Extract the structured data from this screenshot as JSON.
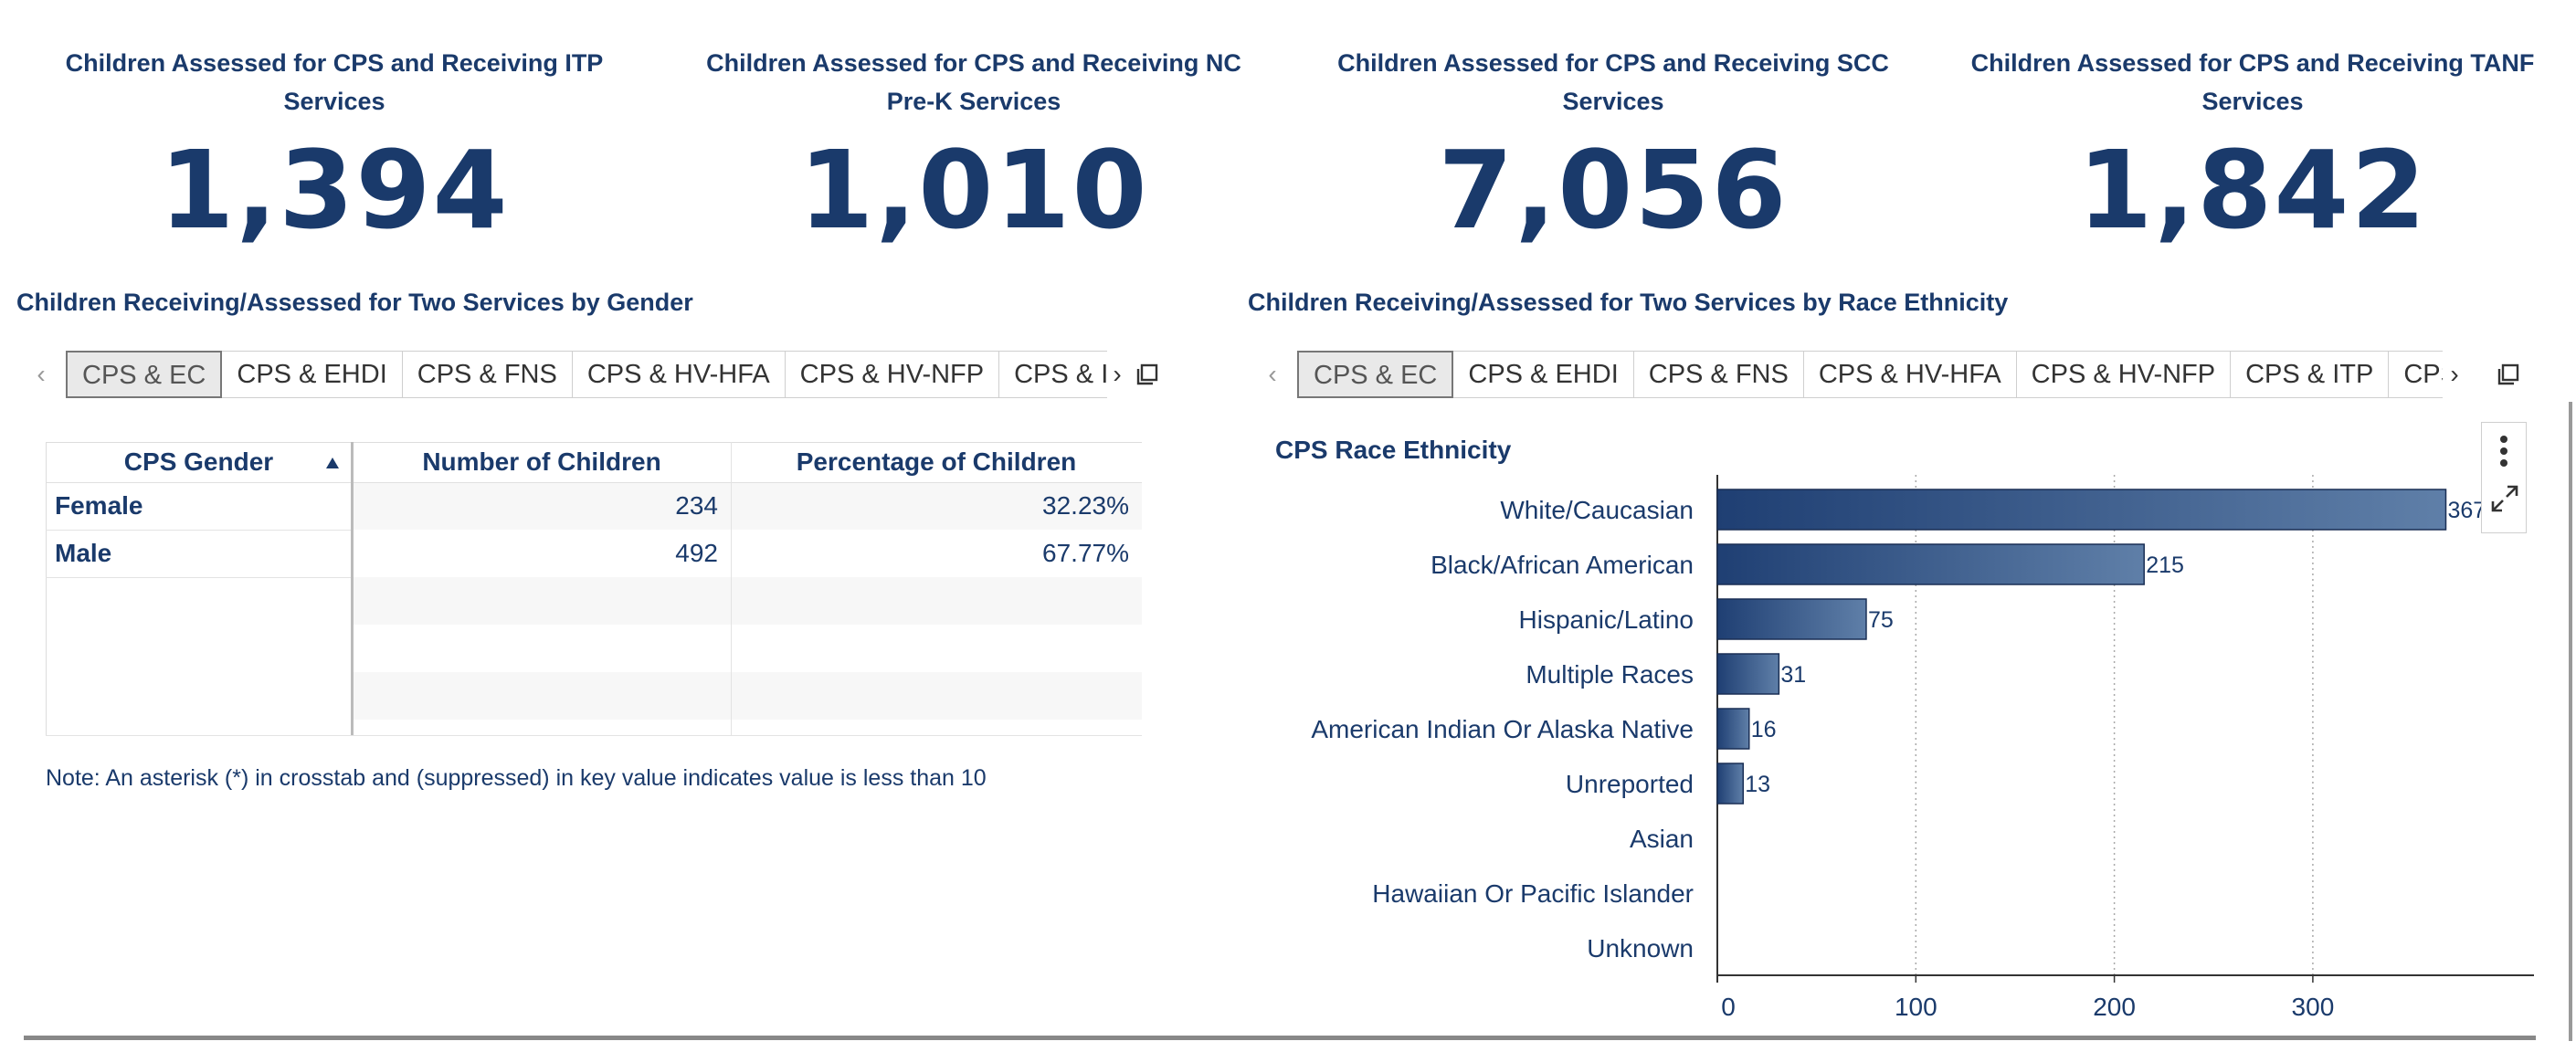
{
  "kpis": [
    {
      "title": "Children Assessed for CPS and Receiving ITP Services",
      "value": "1,394"
    },
    {
      "title": "Children Assessed for CPS and Receiving NC Pre-K Services",
      "value": "1,010"
    },
    {
      "title": "Children Assessed for CPS and Receiving SCC Services",
      "value": "7,056"
    },
    {
      "title": "Children Assessed for CPS and Receiving TANF Services",
      "value": "1,842"
    }
  ],
  "gender_section": {
    "title": "Children Receiving/Assessed for Two Services by Gender",
    "tabs": [
      "CPS & EC",
      "CPS & EHDI",
      "CPS & FNS",
      "CPS & HV-HFA",
      "CPS & HV-NFP",
      "CPS & ITP"
    ],
    "active_tab": "CPS & EC",
    "table": {
      "headers": [
        "CPS Gender",
        "Number of Children",
        "Percentage of Children"
      ],
      "rows": [
        {
          "label": "Female",
          "number": "234",
          "percent": "32.23%"
        },
        {
          "label": "Male",
          "number": "492",
          "percent": "67.77%"
        }
      ]
    },
    "note": "Note: An asterisk (*) in crosstab and (suppressed) in key value indicates value is less than 10"
  },
  "race_section": {
    "title": "Children Receiving/Assessed for Two Services by Race Ethnicity",
    "tabs": [
      "CPS & EC",
      "CPS & EHDI",
      "CPS & FNS",
      "CPS & HV-HFA",
      "CPS & HV-NFP",
      "CPS & ITP",
      "CPS & NC Pre-K"
    ],
    "active_tab": "CPS & EC"
  },
  "chart_data": {
    "type": "bar",
    "orientation": "horizontal",
    "title": "CPS Race Ethnicity",
    "categories": [
      "White/Caucasian",
      "Black/African American",
      "Hispanic/Latino",
      "Multiple Races",
      "American Indian Or Alaska Native",
      "Unreported",
      "Asian",
      "Hawaiian Or Pacific Islander",
      "Unknown"
    ],
    "values": [
      367,
      215,
      75,
      31,
      16,
      13,
      0,
      0,
      0
    ],
    "data_labels": [
      "367",
      "215",
      "75",
      "31",
      "16",
      "13",
      "",
      "",
      ""
    ],
    "xticks": [
      "0",
      "100",
      "200",
      "300"
    ],
    "xlim": [
      0,
      393
    ],
    "grid": "vertical dotted",
    "bar_color": "#1f3f73",
    "bar_color_light": "#5f7fa8"
  },
  "icons": [
    "chevron-left-icon",
    "chevron-right-icon",
    "copy-icon",
    "sort-asc-icon",
    "more-vertical-icon",
    "expand-icon"
  ],
  "colors": {
    "primary": "#1a3a6b",
    "tab_active_bg": "#e9e9e9",
    "table_stripe": "#f7f7f7"
  }
}
